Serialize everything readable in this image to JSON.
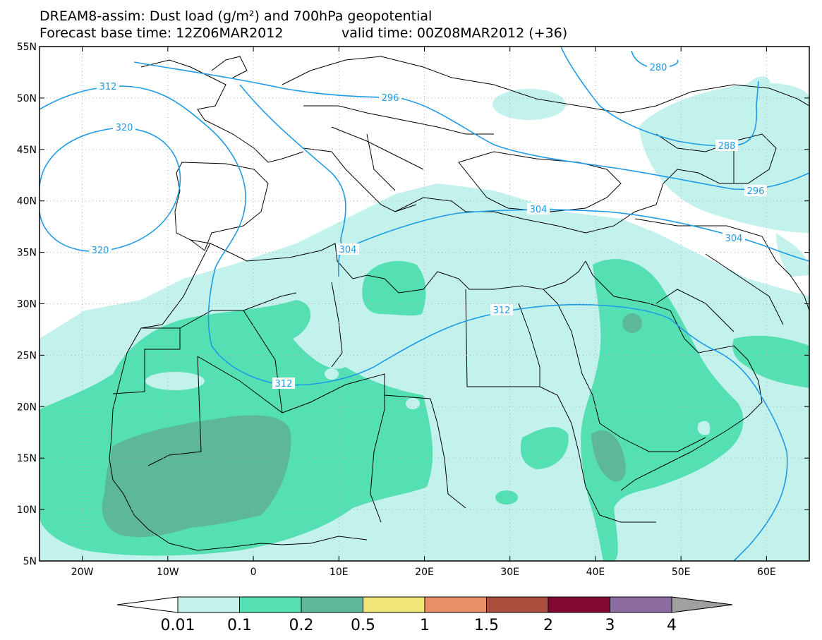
{
  "title_line1": "DREAM8-assim: Dust load (g/m²) and 700hPa geopotential",
  "title_line2": "Forecast base time: 12Z06MAR2012",
  "valid_time": "valid time: 00Z08MAR2012 (+36)",
  "map": {
    "lon_range": [
      -25,
      65
    ],
    "lat_range": [
      5,
      55
    ],
    "lat_labels": [
      "55N",
      "50N",
      "45N",
      "40N",
      "35N",
      "30N",
      "25N",
      "20N",
      "15N",
      "10N",
      "5N"
    ],
    "lon_labels": [
      "20W",
      "10W",
      "0",
      "10E",
      "20E",
      "30E",
      "40E",
      "50E",
      "60E"
    ],
    "contour_color": "#1e9be6",
    "contour_labels": [
      "312",
      "320",
      "320",
      "296",
      "280",
      "288",
      "296",
      "304",
      "304",
      "304",
      "312",
      "312"
    ]
  },
  "colorbar": {
    "labels": [
      "0.01",
      "0.1",
      "0.2",
      "0.5",
      "1",
      "1.5",
      "2",
      "3",
      "4"
    ],
    "colors": [
      "#c3f1ec",
      "#55e0b4",
      "#5cb898",
      "#f0e678",
      "#e89068",
      "#aa4e3e",
      "#820a32",
      "#8c6ca0"
    ],
    "under_color": "#ffffff",
    "over_color": "#a0a0a0"
  }
}
